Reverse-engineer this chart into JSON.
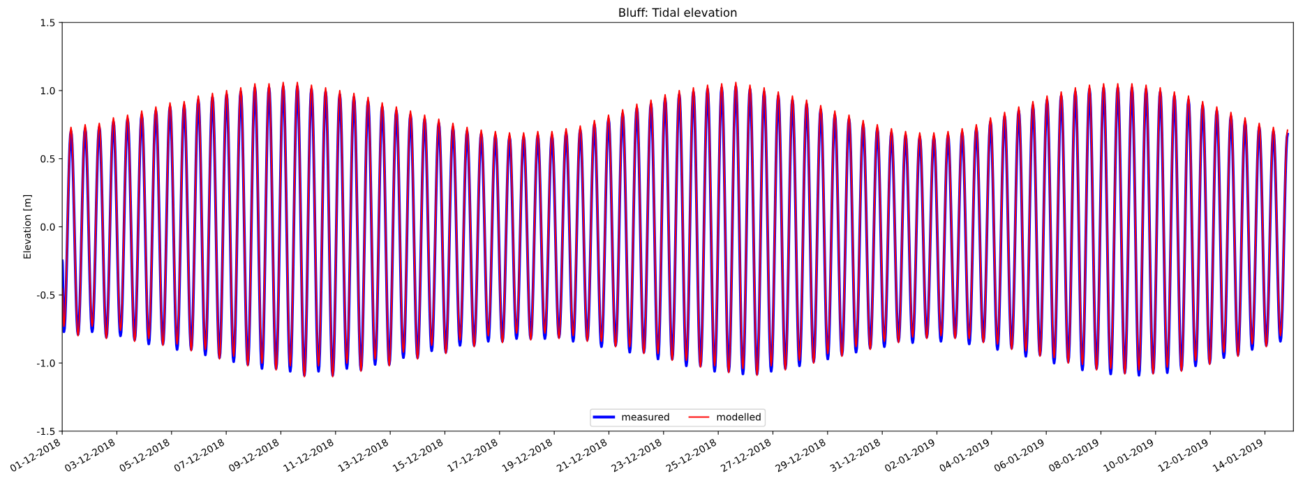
{
  "chart_data": {
    "type": "line",
    "title": "Bluff: Tidal elevation",
    "ylabel": "Elevation [m]",
    "x": [
      "2018-12-01T00:00",
      "2018-12-01T01:30",
      "2018-12-01T07:43",
      "2018-12-01T13:55",
      "2018-12-01T20:08",
      "2018-12-02T02:20",
      "2018-12-02T08:33",
      "2018-12-02T14:46",
      "2018-12-02T20:58",
      "2018-12-03T03:11",
      "2018-12-03T09:23",
      "2018-12-03T15:36",
      "2018-12-03T21:49",
      "2018-12-04T04:01",
      "2018-12-04T10:14",
      "2018-12-04T16:26",
      "2018-12-04T22:39",
      "2018-12-05T04:52",
      "2018-12-05T11:04",
      "2018-12-05T17:17",
      "2018-12-05T23:29",
      "2018-12-06T05:42",
      "2018-12-06T11:55",
      "2018-12-06T18:07",
      "2018-12-07T00:20",
      "2018-12-07T06:32",
      "2018-12-07T12:45",
      "2018-12-07T18:58",
      "2018-12-08T01:10",
      "2018-12-08T07:23",
      "2018-12-08T13:35",
      "2018-12-08T19:48",
      "2018-12-09T02:01",
      "2018-12-09T08:13",
      "2018-12-09T14:26",
      "2018-12-09T20:38",
      "2018-12-10T02:51",
      "2018-12-10T09:04",
      "2018-12-10T15:16",
      "2018-12-10T21:29",
      "2018-12-11T03:41",
      "2018-12-11T09:54",
      "2018-12-11T16:07",
      "2018-12-11T22:19",
      "2018-12-12T04:32",
      "2018-12-12T10:44",
      "2018-12-12T16:57",
      "2018-12-12T23:10",
      "2018-12-13T05:22",
      "2018-12-13T11:35",
      "2018-12-13T17:47",
      "2018-12-14T00:00",
      "2018-12-14T06:13",
      "2018-12-14T12:25",
      "2018-12-14T18:38",
      "2018-12-15T00:50",
      "2018-12-15T07:03",
      "2018-12-15T13:16",
      "2018-12-15T19:28",
      "2018-12-16T01:41",
      "2018-12-16T07:53",
      "2018-12-16T14:06",
      "2018-12-16T20:19",
      "2018-12-17T02:31",
      "2018-12-17T08:44",
      "2018-12-17T14:56",
      "2018-12-17T21:09",
      "2018-12-18T03:22",
      "2018-12-18T09:34",
      "2018-12-18T15:47",
      "2018-12-18T21:59",
      "2018-12-19T04:12",
      "2018-12-19T10:25",
      "2018-12-19T16:37",
      "2018-12-19T22:50",
      "2018-12-20T05:02",
      "2018-12-20T11:15",
      "2018-12-20T17:28",
      "2018-12-20T23:40",
      "2018-12-21T05:53",
      "2018-12-21T12:05",
      "2018-12-21T18:18",
      "2018-12-22T00:31",
      "2018-12-22T06:43",
      "2018-12-22T12:56",
      "2018-12-22T19:08",
      "2018-12-23T01:21",
      "2018-12-23T07:34",
      "2018-12-23T13:46",
      "2018-12-23T19:59",
      "2018-12-24T02:11",
      "2018-12-24T08:24",
      "2018-12-24T14:37",
      "2018-12-24T20:49",
      "2018-12-25T03:02",
      "2018-12-25T09:14",
      "2018-12-25T15:27",
      "2018-12-25T21:40",
      "2018-12-26T03:52",
      "2018-12-26T10:05",
      "2018-12-26T16:17",
      "2018-12-26T22:30",
      "2018-12-27T04:43",
      "2018-12-27T10:55",
      "2018-12-27T17:08",
      "2018-12-27T23:20",
      "2018-12-28T05:33",
      "2018-12-28T11:46",
      "2018-12-28T17:58",
      "2018-12-29T00:11",
      "2018-12-29T06:23",
      "2018-12-29T12:36",
      "2018-12-29T18:49",
      "2018-12-30T01:01",
      "2018-12-30T07:14",
      "2018-12-30T13:26",
      "2018-12-30T19:39",
      "2018-12-31T01:52",
      "2018-12-31T08:04",
      "2018-12-31T14:17",
      "2018-12-31T20:29",
      "2019-01-01T02:42",
      "2019-01-01T08:55",
      "2019-01-01T15:07",
      "2019-01-01T21:20",
      "2019-01-02T03:32",
      "2019-01-02T09:45",
      "2019-01-02T15:58",
      "2019-01-02T22:10",
      "2019-01-03T04:23",
      "2019-01-03T10:35",
      "2019-01-03T16:48",
      "2019-01-03T23:01",
      "2019-01-04T05:13",
      "2019-01-04T11:26",
      "2019-01-04T17:38",
      "2019-01-04T23:51",
      "2019-01-05T06:04",
      "2019-01-05T12:16",
      "2019-01-05T18:29",
      "2019-01-06T00:41",
      "2019-01-06T06:54",
      "2019-01-06T13:07",
      "2019-01-06T19:19",
      "2019-01-07T01:32",
      "2019-01-07T07:44",
      "2019-01-07T13:57",
      "2019-01-07T20:10",
      "2019-01-08T02:22",
      "2019-01-08T08:35",
      "2019-01-08T14:47",
      "2019-01-08T21:00",
      "2019-01-09T03:13",
      "2019-01-09T09:25",
      "2019-01-09T15:38",
      "2019-01-09T21:50",
      "2019-01-10T04:03",
      "2019-01-10T10:16",
      "2019-01-10T16:28",
      "2019-01-10T22:41",
      "2019-01-11T04:53",
      "2019-01-11T11:06",
      "2019-01-11T17:19",
      "2019-01-11T23:31",
      "2019-01-12T05:44",
      "2019-01-12T11:56",
      "2019-01-12T18:09",
      "2019-01-13T00:22",
      "2019-01-13T06:34",
      "2019-01-13T12:47",
      "2019-01-13T18:59",
      "2019-01-14T01:12",
      "2019-01-14T07:25",
      "2019-01-14T13:37",
      "2019-01-14T19:50"
    ],
    "series": [
      {
        "name": "measured",
        "color": "#0000ff",
        "values": [
          -0.25,
          -0.77,
          0.7,
          -0.79,
          0.72,
          -0.77,
          0.73,
          -0.81,
          0.77,
          -0.8,
          0.79,
          -0.83,
          0.82,
          -0.86,
          0.85,
          -0.86,
          0.88,
          -0.9,
          0.89,
          -0.9,
          0.93,
          -0.94,
          0.95,
          -0.96,
          0.97,
          -0.99,
          0.99,
          -1.01,
          1.02,
          -1.04,
          1.02,
          -1.04,
          1.03,
          -1.06,
          1.03,
          -1.09,
          1.01,
          -1.06,
          0.99,
          -1.09,
          0.97,
          -1.04,
          0.95,
          -1.05,
          0.92,
          -1.01,
          0.88,
          -1.01,
          0.85,
          -0.96,
          0.82,
          -0.96,
          0.79,
          -0.91,
          0.76,
          -0.92,
          0.73,
          -0.87,
          0.7,
          -0.87,
          0.68,
          -0.84,
          0.67,
          -0.84,
          0.66,
          -0.82,
          0.66,
          -0.82,
          0.67,
          -0.82,
          0.67,
          -0.81,
          0.69,
          -0.84,
          0.71,
          -0.83,
          0.75,
          -0.88,
          0.79,
          -0.87,
          0.83,
          -0.92,
          0.87,
          -0.92,
          0.9,
          -0.97,
          0.94,
          -0.97,
          0.97,
          -1.02,
          0.99,
          -1.02,
          1.01,
          -1.06,
          1.02,
          -1.06,
          1.03,
          -1.08,
          1.01,
          -1.08,
          0.99,
          -1.06,
          0.96,
          -1.04,
          0.93,
          -1.02,
          0.9,
          -0.99,
          0.86,
          -0.97,
          0.82,
          -0.94,
          0.79,
          -0.92,
          0.75,
          -0.89,
          0.72,
          -0.88,
          0.69,
          -0.84,
          0.67,
          -0.85,
          0.66,
          -0.81,
          0.66,
          -0.84,
          0.67,
          -0.81,
          0.69,
          -0.86,
          0.72,
          -0.84,
          0.77,
          -0.9,
          0.81,
          -0.89,
          0.85,
          -0.95,
          0.89,
          -0.94,
          0.93,
          -1.0,
          0.96,
          -0.99,
          0.99,
          -1.05,
          1.01,
          -1.04,
          1.02,
          -1.08,
          1.02,
          -1.07,
          1.02,
          -1.09,
          1.01,
          -1.07,
          0.99,
          -1.07,
          0.96,
          -1.05,
          0.93,
          -1.02,
          0.89,
          -1.0,
          0.85,
          -0.96,
          0.81,
          -0.94,
          0.77,
          -0.9,
          0.73,
          -0.87,
          0.7,
          -0.84,
          0.68
        ]
      },
      {
        "name": "modelled",
        "color": "#ff0000",
        "values": [
          -0.45,
          -0.73,
          0.73,
          -0.8,
          0.75,
          -0.73,
          0.76,
          -0.82,
          0.8,
          -0.76,
          0.82,
          -0.84,
          0.85,
          -0.82,
          0.88,
          -0.87,
          0.91,
          -0.86,
          0.92,
          -0.91,
          0.96,
          -0.9,
          0.98,
          -0.97,
          1.0,
          -0.95,
          1.02,
          -1.02,
          1.05,
          -1.0,
          1.05,
          -1.05,
          1.06,
          -1.02,
          1.06,
          -1.1,
          1.04,
          -1.02,
          1.02,
          -1.1,
          1.0,
          -1.0,
          0.98,
          -1.06,
          0.95,
          -0.97,
          0.91,
          -1.02,
          0.88,
          -0.92,
          0.85,
          -0.97,
          0.82,
          -0.87,
          0.79,
          -0.93,
          0.76,
          -0.83,
          0.73,
          -0.88,
          0.71,
          -0.8,
          0.7,
          -0.85,
          0.69,
          -0.78,
          0.69,
          -0.83,
          0.7,
          -0.78,
          0.7,
          -0.82,
          0.72,
          -0.8,
          0.74,
          -0.84,
          0.78,
          -0.84,
          0.82,
          -0.88,
          0.86,
          -0.88,
          0.9,
          -0.93,
          0.93,
          -0.93,
          0.97,
          -0.98,
          1.0,
          -0.98,
          1.02,
          -1.03,
          1.04,
          -1.02,
          1.05,
          -1.07,
          1.06,
          -1.04,
          1.04,
          -1.09,
          1.02,
          -1.02,
          0.99,
          -1.05,
          0.96,
          -0.98,
          0.93,
          -1.0,
          0.89,
          -0.93,
          0.85,
          -0.95,
          0.82,
          -0.88,
          0.78,
          -0.9,
          0.75,
          -0.84,
          0.72,
          -0.85,
          0.7,
          -0.81,
          0.69,
          -0.82,
          0.69,
          -0.8,
          0.7,
          -0.82,
          0.72,
          -0.82,
          0.75,
          -0.85,
          0.8,
          -0.86,
          0.84,
          -0.9,
          0.88,
          -0.91,
          0.92,
          -0.95,
          0.96,
          -0.96,
          0.99,
          -1.0,
          1.02,
          -1.01,
          1.04,
          -1.05,
          1.05,
          -1.04,
          1.05,
          -1.08,
          1.05,
          -1.05,
          1.04,
          -1.08,
          1.02,
          -1.03,
          0.99,
          -1.06,
          0.96,
          -0.98,
          0.92,
          -1.01,
          0.88,
          -0.92,
          0.84,
          -0.95,
          0.8,
          -0.86,
          0.76,
          -0.88,
          0.73,
          -0.8,
          0.71
        ]
      }
    ],
    "xlim": [
      "2018-12-01T00:00",
      "2019-01-15T01:00"
    ],
    "xticks": [
      {
        "value": "2018-12-01",
        "label": "01-12-2018"
      },
      {
        "value": "2018-12-03",
        "label": "03-12-2018"
      },
      {
        "value": "2018-12-05",
        "label": "05-12-2018"
      },
      {
        "value": "2018-12-07",
        "label": "07-12-2018"
      },
      {
        "value": "2018-12-09",
        "label": "09-12-2018"
      },
      {
        "value": "2018-12-11",
        "label": "11-12-2018"
      },
      {
        "value": "2018-12-13",
        "label": "13-12-2018"
      },
      {
        "value": "2018-12-15",
        "label": "15-12-2018"
      },
      {
        "value": "2018-12-17",
        "label": "17-12-2018"
      },
      {
        "value": "2018-12-19",
        "label": "19-12-2018"
      },
      {
        "value": "2018-12-21",
        "label": "21-12-2018"
      },
      {
        "value": "2018-12-23",
        "label": "23-12-2018"
      },
      {
        "value": "2018-12-25",
        "label": "25-12-2018"
      },
      {
        "value": "2018-12-27",
        "label": "27-12-2018"
      },
      {
        "value": "2018-12-29",
        "label": "29-12-2018"
      },
      {
        "value": "2018-12-31",
        "label": "31-12-2018"
      },
      {
        "value": "2019-01-02",
        "label": "02-01-2019"
      },
      {
        "value": "2019-01-04",
        "label": "04-01-2019"
      },
      {
        "value": "2019-01-06",
        "label": "06-01-2019"
      },
      {
        "value": "2019-01-08",
        "label": "08-01-2019"
      },
      {
        "value": "2019-01-10",
        "label": "10-01-2019"
      },
      {
        "value": "2019-01-12",
        "label": "12-01-2019"
      },
      {
        "value": "2019-01-14",
        "label": "14-01-2019"
      }
    ],
    "ylim": [
      -1.5,
      1.5
    ],
    "yticks": [
      {
        "value": -1.5,
        "label": "-1.5"
      },
      {
        "value": -1.0,
        "label": "-1.0"
      },
      {
        "value": -0.5,
        "label": "-0.5"
      },
      {
        "value": 0,
        "label": "0.0"
      },
      {
        "value": 0.5,
        "label": "0.5"
      },
      {
        "value": 1.0,
        "label": "1.0"
      },
      {
        "value": 1.5,
        "label": "1.5"
      }
    ],
    "legend": "bottom",
    "grid": false,
    "marker": "none",
    "line_style": "solid"
  }
}
